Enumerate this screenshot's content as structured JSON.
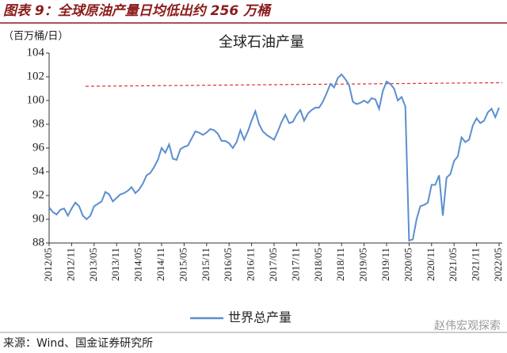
{
  "header": {
    "title": "图表 9：全球原油产量日均低出约 256 万桶"
  },
  "source": "来源：Wind、国金证券研究所",
  "watermark": "赵伟宏观探索",
  "chart_data": {
    "type": "line",
    "title": "全球石油产量",
    "y_label": "（百万桶/日）",
    "categories": [
      "2012/05",
      null,
      null,
      null,
      null,
      null,
      "2012/11",
      null,
      null,
      null,
      null,
      null,
      "2013/05",
      null,
      null,
      null,
      null,
      null,
      "2013/11",
      null,
      null,
      null,
      null,
      null,
      "2014/05",
      null,
      null,
      null,
      null,
      null,
      "2014/11",
      null,
      null,
      null,
      null,
      null,
      "2015/05",
      null,
      null,
      null,
      null,
      null,
      "2015/11",
      null,
      null,
      null,
      null,
      null,
      "2016/05",
      null,
      null,
      null,
      null,
      null,
      "2016/11",
      null,
      null,
      null,
      null,
      null,
      "2017/05",
      null,
      null,
      null,
      null,
      null,
      "2017/11",
      null,
      null,
      null,
      null,
      null,
      "2018/05",
      null,
      null,
      null,
      null,
      null,
      "2018/11",
      null,
      null,
      null,
      null,
      null,
      "2019/05",
      null,
      null,
      null,
      null,
      null,
      "2019/11",
      null,
      null,
      null,
      null,
      null,
      "2020/05",
      null,
      null,
      null,
      null,
      null,
      "2020/11",
      null,
      null,
      null,
      null,
      null,
      "2021/05",
      null,
      null,
      null,
      null,
      null,
      "2021/11",
      null,
      null,
      null,
      null,
      null,
      "2022/05"
    ],
    "series": [
      {
        "name": "世界总产量",
        "color": "#5b8fd0",
        "values": [
          91.0,
          90.6,
          90.4,
          90.8,
          90.9,
          90.3,
          90.9,
          91.4,
          91.1,
          90.3,
          90.0,
          90.3,
          91.1,
          91.3,
          91.5,
          92.3,
          92.1,
          91.5,
          91.8,
          92.1,
          92.2,
          92.4,
          92.7,
          92.2,
          92.5,
          93.0,
          93.7,
          93.9,
          94.4,
          95.0,
          96.0,
          95.6,
          96.3,
          95.1,
          95.0,
          95.9,
          96.1,
          96.2,
          96.8,
          97.4,
          97.3,
          97.1,
          97.3,
          97.6,
          97.5,
          97.2,
          96.6,
          96.6,
          96.4,
          96.0,
          96.5,
          97.5,
          96.7,
          97.4,
          98.3,
          99.1,
          98.0,
          97.4,
          97.1,
          96.9,
          96.7,
          97.4,
          98.2,
          98.8,
          98.1,
          98.2,
          98.8,
          99.2,
          98.3,
          98.9,
          99.2,
          99.4,
          99.4,
          99.9,
          100.6,
          101.4,
          101.1,
          101.9,
          102.2,
          101.8,
          101.3,
          99.9,
          99.7,
          99.8,
          100.0,
          99.8,
          100.2,
          100.1,
          99.3,
          100.8,
          101.6,
          101.4,
          101.0,
          100.0,
          100.3,
          99.5,
          88.2,
          88.3,
          90.0,
          91.1,
          91.2,
          91.4,
          92.9,
          92.9,
          93.7,
          90.3,
          93.5,
          93.8,
          94.9,
          95.3,
          96.9,
          96.5,
          96.7,
          97.9,
          98.5,
          98.1,
          98.3,
          99.0,
          99.3,
          98.6,
          99.4
        ]
      }
    ],
    "reference_line": {
      "values": [
        101.2,
        101.5
      ],
      "color": "#e03030"
    },
    "ylim": [
      88,
      104
    ],
    "yticks": [
      88,
      90,
      92,
      94,
      96,
      98,
      100,
      102,
      104
    ]
  }
}
